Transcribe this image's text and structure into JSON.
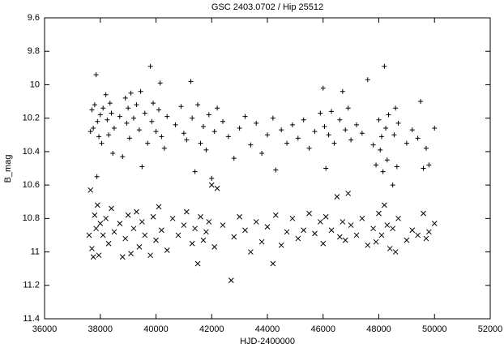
{
  "chart_data": {
    "type": "scatter",
    "title": "GSC 2403.0702 / Hip 25512",
    "x_label": "HJD-2400000",
    "y_label": "B_mag",
    "xlim": [
      36000,
      52000
    ],
    "xticks": [
      36000,
      38000,
      40000,
      42000,
      44000,
      46000,
      48000,
      50000,
      52000
    ],
    "ylim": [
      9.6,
      11.4
    ],
    "yticks": [
      9.6,
      9.8,
      10,
      10.2,
      10.4,
      10.6,
      10.8,
      11,
      11.2,
      11.4
    ],
    "y_inverted": true,
    "grid": false,
    "series": [
      {
        "color": "#000000",
        "marker": "plus",
        "x": [
          37650,
          37700,
          37750,
          37800,
          37850,
          37880,
          37900,
          37950,
          38000,
          38050,
          38100,
          38200,
          38250,
          38300,
          38350,
          38400,
          38450,
          38500,
          38700,
          38800,
          38900,
          38950,
          39000,
          39050,
          39100,
          39200,
          39300,
          39400,
          39450,
          39500,
          39600,
          39700,
          39800,
          39850,
          39900,
          40000,
          40100,
          40150,
          40200,
          40300,
          40400,
          40700,
          40900,
          41000,
          41100,
          41250,
          41300,
          41400,
          41500,
          41600,
          41700,
          41800,
          41900,
          42000,
          42100,
          42200,
          42400,
          42600,
          42800,
          43000,
          43200,
          43400,
          43600,
          43800,
          44000,
          44200,
          44300,
          44500,
          44700,
          44900,
          45100,
          45300,
          45500,
          45700,
          45900,
          46000,
          46050,
          46100,
          46200,
          46300,
          46400,
          46600,
          46700,
          46800,
          46900,
          47000,
          47200,
          47400,
          47600,
          47800,
          47900,
          48000,
          48050,
          48100,
          48150,
          48200,
          48250,
          48300,
          48350,
          48500,
          48550,
          48600,
          48650,
          48700,
          49000,
          49200,
          49400,
          49500,
          49600,
          49700,
          49800,
          50000
        ],
        "values": [
          10.28,
          10.15,
          10.26,
          10.12,
          9.94,
          10.55,
          10.22,
          10.31,
          10.18,
          10.35,
          10.14,
          10.06,
          10.21,
          10.3,
          10.11,
          10.17,
          10.41,
          10.26,
          10.19,
          10.43,
          10.08,
          10.23,
          10.14,
          10.32,
          10.05,
          10.2,
          10.12,
          10.27,
          10.04,
          10.49,
          10.17,
          10.35,
          9.89,
          10.22,
          10.11,
          10.28,
          10.15,
          9.99,
          10.31,
          10.38,
          10.19,
          10.24,
          10.13,
          10.29,
          10.33,
          9.98,
          10.2,
          10.52,
          10.12,
          10.35,
          10.25,
          10.39,
          10.18,
          10.56,
          10.28,
          10.14,
          10.22,
          10.31,
          10.44,
          10.26,
          10.19,
          10.36,
          10.23,
          10.41,
          10.3,
          10.2,
          10.51,
          10.27,
          10.35,
          10.24,
          10.32,
          10.21,
          10.38,
          10.28,
          10.17,
          10.02,
          10.25,
          10.5,
          10.3,
          10.16,
          10.35,
          10.21,
          10.04,
          10.27,
          10.14,
          10.33,
          10.24,
          10.29,
          9.97,
          10.36,
          10.48,
          10.21,
          10.39,
          10.31,
          10.52,
          9.89,
          10.26,
          10.45,
          10.18,
          10.6,
          10.3,
          10.14,
          10.49,
          10.23,
          10.35,
          10.27,
          10.32,
          10.1,
          10.5,
          10.38,
          10.48,
          10.26
        ]
      },
      {
        "color": "#000000",
        "marker": "cross",
        "x": [
          37600,
          37650,
          37700,
          37750,
          37800,
          37850,
          37900,
          37950,
          38000,
          38100,
          38200,
          38300,
          38400,
          38500,
          38700,
          38800,
          38900,
          39000,
          39100,
          39200,
          39300,
          39400,
          39500,
          39600,
          39800,
          39900,
          40000,
          40100,
          40200,
          40400,
          40600,
          40800,
          41000,
          41100,
          41300,
          41400,
          41500,
          41600,
          41700,
          41800,
          41900,
          42000,
          42100,
          42200,
          42400,
          42700,
          42800,
          43000,
          43200,
          43400,
          43600,
          43800,
          44000,
          44200,
          44300,
          44500,
          44700,
          44900,
          45100,
          45300,
          45500,
          45700,
          45900,
          46000,
          46100,
          46300,
          46500,
          46600,
          46700,
          46800,
          46900,
          47000,
          47200,
          47400,
          47600,
          47800,
          47900,
          48000,
          48100,
          48200,
          48300,
          48400,
          48500,
          48600,
          48700,
          49000,
          49200,
          49400,
          49600,
          49700,
          49800,
          50000
        ],
        "values": [
          10.9,
          10.63,
          10.98,
          11.03,
          10.78,
          10.86,
          10.72,
          11.02,
          10.83,
          10.9,
          10.8,
          10.95,
          10.74,
          10.88,
          10.83,
          11.03,
          10.92,
          10.78,
          11.01,
          10.86,
          10.76,
          10.97,
          10.82,
          10.9,
          11.02,
          10.79,
          10.93,
          10.73,
          10.87,
          10.99,
          10.8,
          10.9,
          10.84,
          10.76,
          10.95,
          10.86,
          11.07,
          10.79,
          10.93,
          10.88,
          10.82,
          10.6,
          10.97,
          10.62,
          10.84,
          11.17,
          10.91,
          10.79,
          10.87,
          11.0,
          10.82,
          10.94,
          10.85,
          11.07,
          10.78,
          10.96,
          10.88,
          10.8,
          10.92,
          10.87,
          10.77,
          10.89,
          10.82,
          10.95,
          10.79,
          10.87,
          10.67,
          10.91,
          10.82,
          10.93,
          10.65,
          10.84,
          10.9,
          10.8,
          10.96,
          10.86,
          10.94,
          10.77,
          10.9,
          10.72,
          10.84,
          10.98,
          10.86,
          11.0,
          10.8,
          10.93,
          10.87,
          10.9,
          10.77,
          10.92,
          10.88,
          10.83
        ]
      }
    ]
  }
}
